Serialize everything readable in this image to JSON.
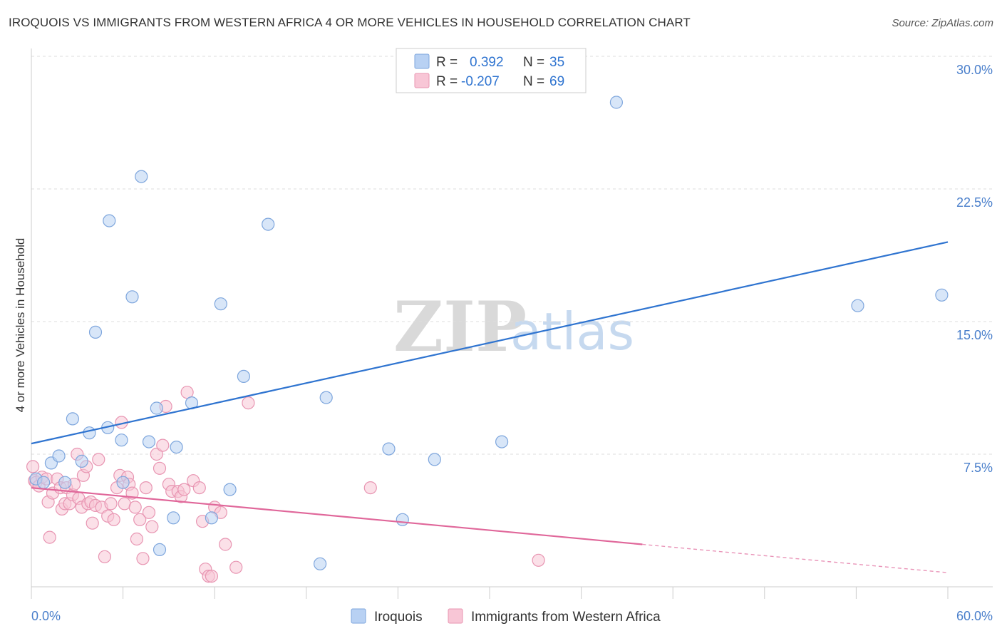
{
  "title": "IROQUOIS VS IMMIGRANTS FROM WESTERN AFRICA 4 OR MORE VEHICLES IN HOUSEHOLD CORRELATION CHART",
  "source": "Source: ZipAtlas.com",
  "watermark": {
    "zip": "ZIP",
    "atlas": "atlas"
  },
  "colors": {
    "iroquois_fill": "#b8d1f3",
    "iroquois_stroke": "#7ea6dd",
    "iroquois_line": "#2f74d0",
    "immig_fill": "#f8c6d6",
    "immig_stroke": "#e895b2",
    "immig_line": "#e0679a",
    "accent_text": "#4a7fcb"
  },
  "legend": {
    "rows": [
      {
        "r_label": "R =",
        "r_value": "0.392",
        "n_label": "N =",
        "n_value": "35"
      },
      {
        "r_label": "R =",
        "r_value": "-0.207",
        "n_label": "N =",
        "n_value": "69"
      }
    ]
  },
  "chart_data": {
    "type": "scatter",
    "title": "IROQUOIS VS IMMIGRANTS FROM WESTERN AFRICA 4 OR MORE VEHICLES IN HOUSEHOLD CORRELATION CHART",
    "xlabel": "",
    "ylabel": "4 or more Vehicles in Household",
    "xlim": [
      0,
      60
    ],
    "ylim": [
      0,
      30
    ],
    "x_tick_labels": [
      {
        "value": 0,
        "label": "0.0%"
      },
      {
        "value": 60,
        "label": "60.0%"
      }
    ],
    "y_tick_labels": [
      {
        "value": 7.5,
        "label": "7.5%"
      },
      {
        "value": 15,
        "label": "15.0%"
      },
      {
        "value": 22.5,
        "label": "22.5%"
      },
      {
        "value": 30,
        "label": "30.0%"
      }
    ],
    "x_minor_ticks": [
      0,
      6,
      12,
      18,
      24,
      30,
      36,
      42,
      48,
      54,
      60
    ],
    "grid": true,
    "series": [
      {
        "name": "Iroquois",
        "r": 0.392,
        "n": 35,
        "trend": {
          "x0": 0,
          "y0": 8.1,
          "x1": 60,
          "y1": 19.5,
          "solid_to": 60
        },
        "points": [
          [
            0.3,
            6.1
          ],
          [
            0.8,
            5.9
          ],
          [
            1.3,
            7.0
          ],
          [
            1.8,
            7.4
          ],
          [
            2.2,
            5.9
          ],
          [
            2.7,
            9.5
          ],
          [
            3.3,
            7.1
          ],
          [
            3.8,
            8.7
          ],
          [
            4.2,
            14.4
          ],
          [
            5.0,
            9.0
          ],
          [
            5.1,
            20.7
          ],
          [
            5.9,
            8.3
          ],
          [
            6.0,
            5.9
          ],
          [
            6.6,
            16.4
          ],
          [
            7.2,
            23.2
          ],
          [
            7.7,
            8.2
          ],
          [
            8.2,
            10.1
          ],
          [
            8.4,
            2.1
          ],
          [
            9.3,
            3.9
          ],
          [
            9.5,
            7.9
          ],
          [
            10.5,
            10.4
          ],
          [
            11.8,
            3.9
          ],
          [
            12.4,
            16.0
          ],
          [
            13.0,
            5.5
          ],
          [
            13.9,
            11.9
          ],
          [
            15.5,
            20.5
          ],
          [
            18.9,
            1.3
          ],
          [
            19.3,
            10.7
          ],
          [
            23.4,
            7.8
          ],
          [
            24.3,
            3.8
          ],
          [
            26.4,
            7.2
          ],
          [
            30.8,
            8.2
          ],
          [
            38.3,
            27.4
          ],
          [
            54.1,
            15.9
          ],
          [
            59.6,
            16.5
          ]
        ]
      },
      {
        "name": "Immigrants from Western Africa",
        "r": -0.207,
        "n": 69,
        "trend": {
          "x0": 0,
          "y0": 5.6,
          "x1": 60,
          "y1": 0.8,
          "solid_to": 40
        },
        "points": [
          [
            0.1,
            6.8
          ],
          [
            0.2,
            6.0
          ],
          [
            0.3,
            5.9
          ],
          [
            0.5,
            5.7
          ],
          [
            0.7,
            6.2
          ],
          [
            1.0,
            6.1
          ],
          [
            1.1,
            4.8
          ],
          [
            1.2,
            2.8
          ],
          [
            1.4,
            5.3
          ],
          [
            1.7,
            6.1
          ],
          [
            1.9,
            5.6
          ],
          [
            2.0,
            4.4
          ],
          [
            2.2,
            4.7
          ],
          [
            2.3,
            5.6
          ],
          [
            2.5,
            4.7
          ],
          [
            2.7,
            5.2
          ],
          [
            2.8,
            5.8
          ],
          [
            3.0,
            7.5
          ],
          [
            3.1,
            5.0
          ],
          [
            3.3,
            4.5
          ],
          [
            3.4,
            6.3
          ],
          [
            3.6,
            6.8
          ],
          [
            3.7,
            4.7
          ],
          [
            3.9,
            4.8
          ],
          [
            4.0,
            3.6
          ],
          [
            4.2,
            4.6
          ],
          [
            4.4,
            7.2
          ],
          [
            4.6,
            4.5
          ],
          [
            4.8,
            1.7
          ],
          [
            5.0,
            4.0
          ],
          [
            5.2,
            4.7
          ],
          [
            5.4,
            3.8
          ],
          [
            5.6,
            5.6
          ],
          [
            5.8,
            6.3
          ],
          [
            5.9,
            9.3
          ],
          [
            6.1,
            4.7
          ],
          [
            6.3,
            6.2
          ],
          [
            6.4,
            5.8
          ],
          [
            6.6,
            5.3
          ],
          [
            6.8,
            4.5
          ],
          [
            6.9,
            2.7
          ],
          [
            7.1,
            3.8
          ],
          [
            7.3,
            1.6
          ],
          [
            7.5,
            5.6
          ],
          [
            7.7,
            4.2
          ],
          [
            7.9,
            3.4
          ],
          [
            8.2,
            7.5
          ],
          [
            8.4,
            6.7
          ],
          [
            8.6,
            8.0
          ],
          [
            8.8,
            10.2
          ],
          [
            9.0,
            5.8
          ],
          [
            9.2,
            5.4
          ],
          [
            9.6,
            5.4
          ],
          [
            9.8,
            5.1
          ],
          [
            10.0,
            5.5
          ],
          [
            10.2,
            11.0
          ],
          [
            10.6,
            6.0
          ],
          [
            11.0,
            5.6
          ],
          [
            11.2,
            3.7
          ],
          [
            11.4,
            1.0
          ],
          [
            11.6,
            0.6
          ],
          [
            11.8,
            0.6
          ],
          [
            12.0,
            4.5
          ],
          [
            12.4,
            4.2
          ],
          [
            12.7,
            2.4
          ],
          [
            13.4,
            1.1
          ],
          [
            14.2,
            10.4
          ],
          [
            22.2,
            5.6
          ],
          [
            33.2,
            1.5
          ]
        ]
      }
    ],
    "legend_position": "top-center",
    "bottom_legend": [
      "Iroquois",
      "Immigrants from Western Africa"
    ]
  }
}
